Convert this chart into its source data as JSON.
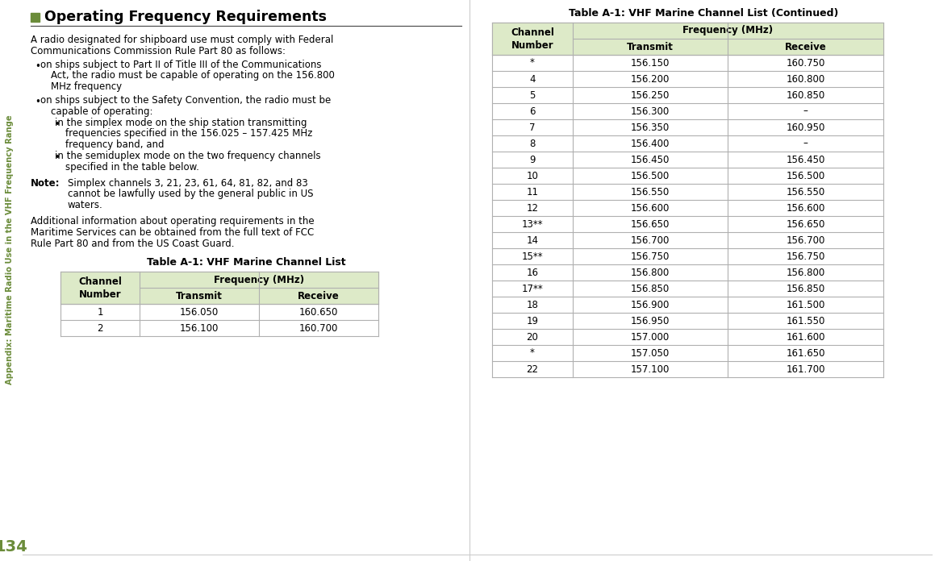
{
  "bg_color": "#ffffff",
  "page_width": 11.64,
  "page_height": 6.96,
  "left_sidebar_text": "Appendix: Maritime Radio Use in the VHF Frequency Range",
  "left_sidebar_color": "#6b8c3a",
  "bottom_left_number": "134",
  "heading_square_color": "#6b8c3a",
  "heading_text": "Operating Frequency Requirements",
  "heading_fontsize": 12.5,
  "table1_title": "Table A-1: VHF Marine Channel List",
  "table2_title": "Table A-1: VHF Marine Channel List (Continued)",
  "table_header_bg": "#ddeac8",
  "table_line_color": "#b0b0b0",
  "table1_data": [
    [
      "1",
      "156.050",
      "160.650"
    ],
    [
      "2",
      "156.100",
      "160.700"
    ]
  ],
  "table2_data": [
    [
      "*",
      "156.150",
      "160.750"
    ],
    [
      "4",
      "156.200",
      "160.800"
    ],
    [
      "5",
      "156.250",
      "160.850"
    ],
    [
      "6",
      "156.300",
      "–"
    ],
    [
      "7",
      "156.350",
      "160.950"
    ],
    [
      "8",
      "156.400",
      "–"
    ],
    [
      "9",
      "156.450",
      "156.450"
    ],
    [
      "10",
      "156.500",
      "156.500"
    ],
    [
      "11",
      "156.550",
      "156.550"
    ],
    [
      "12",
      "156.600",
      "156.600"
    ],
    [
      "13**",
      "156.650",
      "156.650"
    ],
    [
      "14",
      "156.700",
      "156.700"
    ],
    [
      "15**",
      "156.750",
      "156.750"
    ],
    [
      "16",
      "156.800",
      "156.800"
    ],
    [
      "17**",
      "156.850",
      "156.850"
    ],
    [
      "18",
      "156.900",
      "161.500"
    ],
    [
      "19",
      "156.950",
      "161.550"
    ],
    [
      "20",
      "157.000",
      "161.600"
    ],
    [
      "*",
      "157.050",
      "161.650"
    ],
    [
      "22",
      "157.100",
      "161.700"
    ]
  ]
}
